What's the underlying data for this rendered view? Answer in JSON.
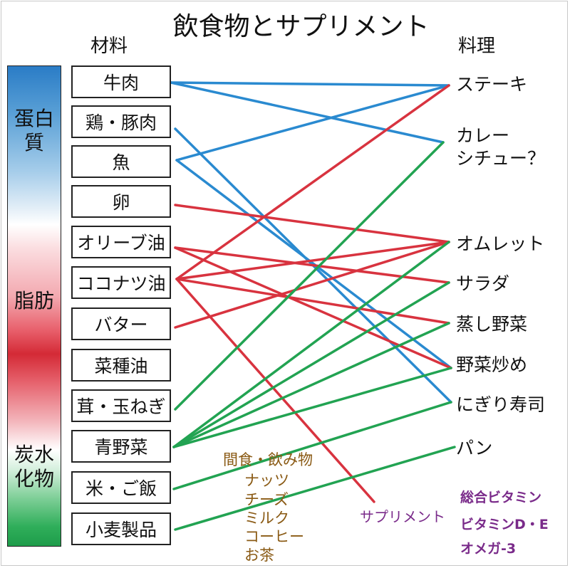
{
  "title": "飲食物とサプリメント",
  "headers": {
    "ingredients": "材料",
    "dishes": "料理"
  },
  "nutrient_bar": {
    "labels": [
      "蛋白質",
      "脂肪",
      "炭水化物"
    ]
  },
  "ingredients": [
    "牛肉",
    "鶏・豚肉",
    "魚",
    "卵",
    "オリーブ油",
    "ココナツ油",
    "バター",
    "菜種油",
    "茸・玉ねぎ",
    "青野菜",
    "米・ご飯",
    "小麦製品"
  ],
  "dishes": [
    "ステーキ",
    "カレー\nシチュー？",
    "オムレット",
    "サラダ",
    "蒸し野菜",
    "野菜炒め",
    "にぎり寿司",
    "パン"
  ],
  "snacks": {
    "label": "間食・飲み物",
    "items": [
      "ナッツ",
      "チーズ",
      "ミルク",
      "コーヒー",
      "お茶"
    ]
  },
  "supplements": {
    "label": "サプリメント",
    "items": [
      "総合ビタミン",
      "ビタミンD・E",
      "オメガ-3"
    ]
  },
  "colors": {
    "protein": "#2a8ad0",
    "fat": "#d8333f",
    "carb": "#22a352"
  },
  "links": [
    {
      "from": "牛肉",
      "to": "ステーキ",
      "color": "protein"
    },
    {
      "from": "牛肉",
      "to": "カレー\nシチュー？",
      "color": "protein"
    },
    {
      "from": "鶏・豚肉",
      "to": "にぎり寿司",
      "color": "protein"
    },
    {
      "from": "魚",
      "to": "ステーキ",
      "color": "protein"
    },
    {
      "from": "魚",
      "to": "野菜炒め",
      "color": "protein"
    },
    {
      "from": "卵",
      "to": "オムレット",
      "color": "fat"
    },
    {
      "from": "オリーブ油",
      "to": "サラダ",
      "color": "fat"
    },
    {
      "from": "オリーブ油",
      "to": "野菜炒め",
      "color": "fat"
    },
    {
      "from": "ココナツ油",
      "to": "ステーキ",
      "color": "fat"
    },
    {
      "from": "ココナツ油",
      "to": "オムレット",
      "color": "fat"
    },
    {
      "from": "ココナツ油",
      "to": "蒸し野菜",
      "color": "fat"
    },
    {
      "from": "ココナツ油",
      "to": "サプリメント",
      "color": "fat"
    },
    {
      "from": "バター",
      "to": "オムレット",
      "color": "fat"
    },
    {
      "from": "茸・玉ねぎ",
      "to": "カレー\nシチュー？",
      "color": "carb"
    },
    {
      "from": "青野菜",
      "to": "オムレット",
      "color": "carb"
    },
    {
      "from": "青野菜",
      "to": "サラダ",
      "color": "carb"
    },
    {
      "from": "青野菜",
      "to": "蒸し野菜",
      "color": "carb"
    },
    {
      "from": "青野菜",
      "to": "野菜炒め",
      "color": "carb"
    },
    {
      "from": "米・ご飯",
      "to": "にぎり寿司",
      "color": "carb"
    },
    {
      "from": "小麦製品",
      "to": "パン",
      "color": "carb"
    }
  ]
}
